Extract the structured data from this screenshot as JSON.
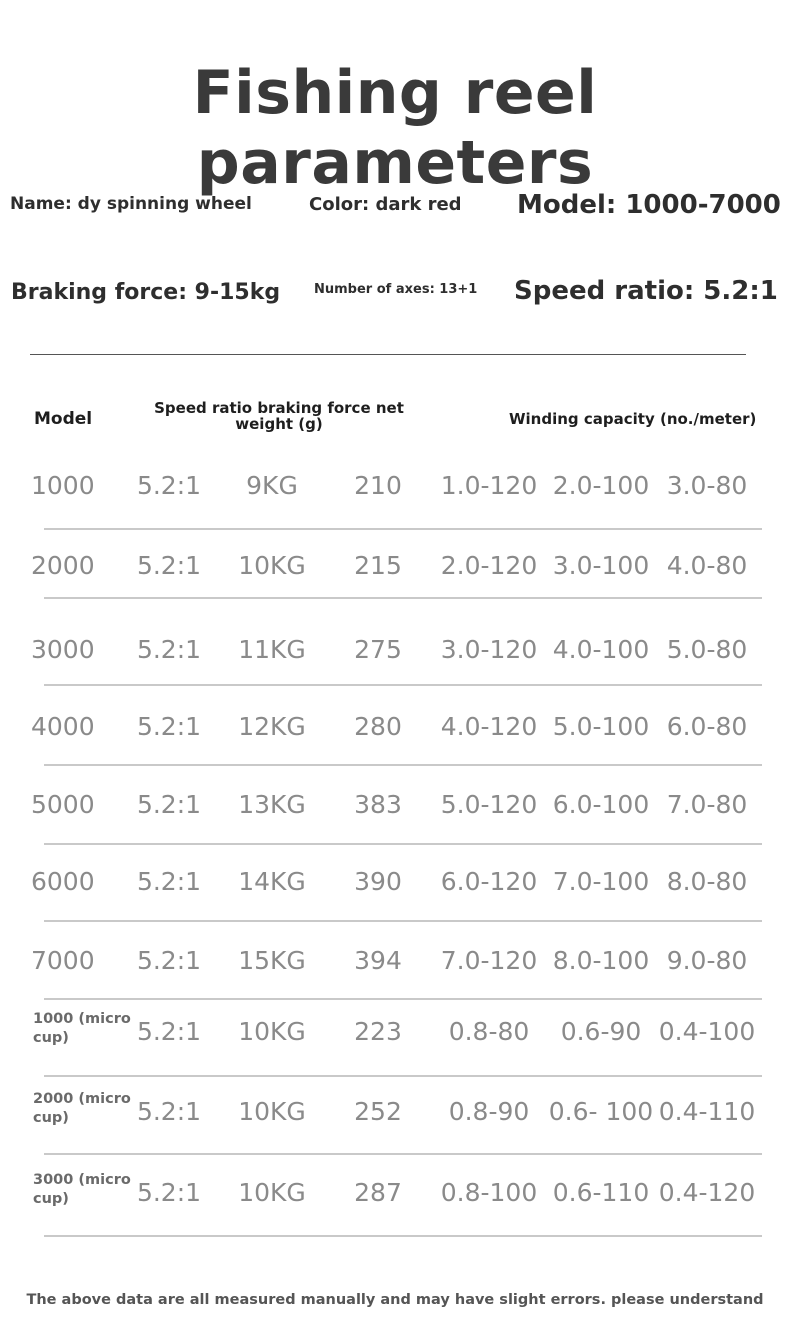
{
  "title": "Fishing reel parameters",
  "specs": {
    "name": "Name: dy spinning wheel",
    "color": "Color: dark red",
    "model": "Model: 1000-7000",
    "braking": "Braking force: 9-15kg",
    "axes": "Number of axes: 13+1",
    "speed": "Speed ratio: 5.2:1"
  },
  "table": {
    "headers": {
      "model": "Model",
      "middle": "Speed ratio braking force net weight (g)",
      "winding": "Winding capacity (no./meter)"
    },
    "rows": [
      {
        "model": "1000",
        "speed": "5.2:1",
        "braking": "9KG",
        "weight": "210",
        "w1": "1.0-120",
        "w2": "2.0-100",
        "w3": "3.0-80"
      },
      {
        "model": "2000",
        "speed": "5.2:1",
        "braking": "10KG",
        "weight": "215",
        "w1": "2.0-120",
        "w2": "3.0-100",
        "w3": "4.0-80"
      },
      {
        "model": "3000",
        "speed": "5.2:1",
        "braking": "11KG",
        "weight": "275",
        "w1": "3.0-120",
        "w2": "4.0-100",
        "w3": "5.0-80"
      },
      {
        "model": "4000",
        "speed": "5.2:1",
        "braking": "12KG",
        "weight": "280",
        "w1": "4.0-120",
        "w2": "5.0-100",
        "w3": "6.0-80"
      },
      {
        "model": "5000",
        "speed": "5.2:1",
        "braking": "13KG",
        "weight": "383",
        "w1": "5.0-120",
        "w2": "6.0-100",
        "w3": "7.0-80"
      },
      {
        "model": "6000",
        "speed": "5.2:1",
        "braking": "14KG",
        "weight": "390",
        "w1": "6.0-120",
        "w2": "7.0-100",
        "w3": "8.0-80"
      },
      {
        "model": "7000",
        "speed": "5.2:1",
        "braking": "15KG",
        "weight": "394",
        "w1": "7.0-120",
        "w2": "8.0-100",
        "w3": "9.0-80"
      },
      {
        "model": "1000 (micro cup)",
        "speed": "5.2:1",
        "braking": "10KG",
        "weight": "223",
        "w1": "0.8-80",
        "w2": "0.6-90",
        "w3": "0.4-100"
      },
      {
        "model": "2000 (micro cup)",
        "speed": "5.2:1",
        "braking": "10KG",
        "weight": "252",
        "w1": "0.8-90",
        "w2": "0.6- 100",
        "w3": "0.4-110"
      },
      {
        "model": "3000 (micro cup)",
        "speed": "5.2:1",
        "braking": "10KG",
        "weight": "287",
        "w1": "0.8-100",
        "w2": "0.6-110",
        "w3": "0.4-120"
      }
    ]
  },
  "footer": "The above data are all measured manually and may have slight errors. please understand"
}
